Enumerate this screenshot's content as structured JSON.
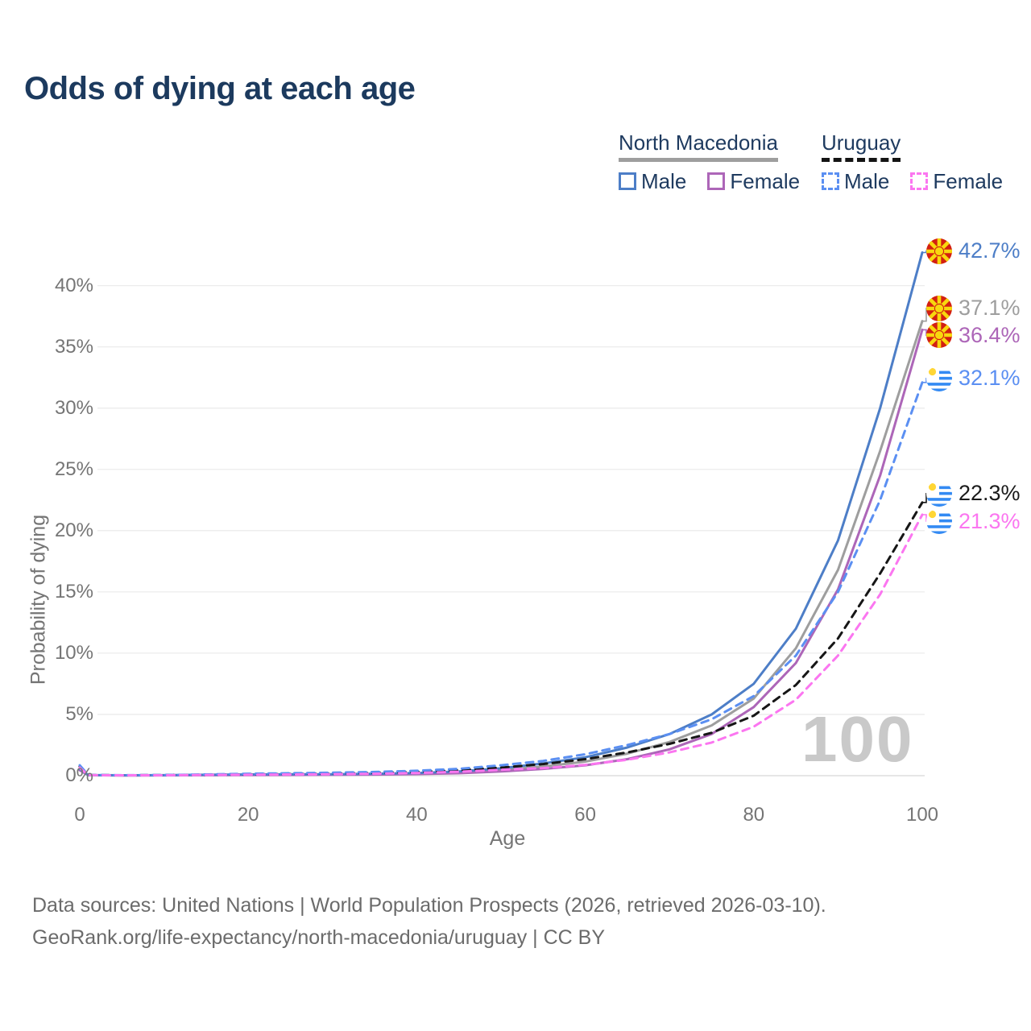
{
  "title": "Odds of dying at each age",
  "legend": {
    "groups": [
      {
        "label": "North Macedonia",
        "underline_style": "solid",
        "underline_color": "#9e9e9e",
        "items": [
          {
            "label": "Male",
            "swatch_color": "#4d7ec7",
            "swatch_style": "solid"
          },
          {
            "label": "Female",
            "swatch_color": "#ad66b8",
            "swatch_style": "solid"
          }
        ]
      },
      {
        "label": "Uruguay",
        "underline_style": "dashed",
        "underline_color": "#141414",
        "items": [
          {
            "label": "Male",
            "swatch_color": "#5b8ff2",
            "swatch_style": "dashed"
          },
          {
            "label": "Female",
            "swatch_color": "#fb76f0",
            "swatch_style": "dashed"
          }
        ]
      }
    ]
  },
  "chart_data": {
    "type": "line",
    "title": "Odds of dying at each age",
    "xlabel": "Age",
    "ylabel": "Probability of dying",
    "xlim": [
      0,
      100
    ],
    "ylim": [
      0,
      43
    ],
    "xticks": [
      0,
      20,
      40,
      60,
      80,
      100
    ],
    "yticks": [
      0,
      5,
      10,
      15,
      20,
      25,
      30,
      35,
      40
    ],
    "ytick_suffix": "%",
    "grid": "horizontal",
    "hover_age_indicator": "100",
    "ages": [
      0,
      1,
      5,
      10,
      15,
      20,
      25,
      30,
      35,
      40,
      45,
      50,
      55,
      60,
      65,
      70,
      75,
      80,
      85,
      90,
      95,
      100
    ],
    "series": [
      {
        "name": "North Macedonia",
        "sex": "both",
        "style": "solid",
        "color": "#9e9e9e",
        "flag": "mk",
        "end_label": "37.1%",
        "label_color": "#9e9e9e",
        "values": [
          0.5,
          0.04,
          0.025,
          0.03,
          0.05,
          0.07,
          0.08,
          0.09,
          0.12,
          0.17,
          0.27,
          0.46,
          0.75,
          1.15,
          1.8,
          2.75,
          4.1,
          6.3,
          10.4,
          16.8,
          26.5,
          37.1
        ]
      },
      {
        "name": "North Macedonia Female",
        "sex": "female",
        "style": "solid",
        "color": "#ad66b8",
        "flag": "mk",
        "end_label": "36.4%",
        "label_color": "#ad66b8",
        "values": [
          0.45,
          0.04,
          0.02,
          0.025,
          0.04,
          0.05,
          0.06,
          0.07,
          0.09,
          0.13,
          0.2,
          0.34,
          0.55,
          0.85,
          1.35,
          2.15,
          3.4,
          5.6,
          9.2,
          15.2,
          24.5,
          36.4
        ]
      },
      {
        "name": "North Macedonia Male",
        "sex": "male",
        "style": "solid",
        "color": "#4d7ec7",
        "flag": "mk",
        "end_label": "42.7%",
        "label_color": "#4d7ec7",
        "values": [
          0.55,
          0.05,
          0.03,
          0.04,
          0.07,
          0.1,
          0.11,
          0.12,
          0.16,
          0.22,
          0.35,
          0.6,
          1.0,
          1.5,
          2.3,
          3.4,
          5.0,
          7.5,
          12.0,
          19.2,
          30.0,
          42.7
        ]
      },
      {
        "name": "Uruguay",
        "sex": "both",
        "style": "dashed",
        "color": "#161616",
        "flag": "uy",
        "end_label": "22.3%",
        "label_color": "#1a1a1a",
        "values": [
          0.75,
          0.045,
          0.035,
          0.045,
          0.08,
          0.12,
          0.15,
          0.18,
          0.23,
          0.31,
          0.44,
          0.66,
          0.95,
          1.35,
          1.9,
          2.6,
          3.5,
          4.9,
          7.4,
          11.2,
          16.5,
          22.3
        ]
      },
      {
        "name": "Uruguay Male",
        "sex": "male",
        "style": "dashed",
        "color": "#5b8ff2",
        "flag": "uy",
        "end_label": "32.1%",
        "label_color": "#5b8ff2",
        "values": [
          0.85,
          0.05,
          0.04,
          0.05,
          0.1,
          0.16,
          0.2,
          0.24,
          0.3,
          0.4,
          0.56,
          0.85,
          1.2,
          1.75,
          2.5,
          3.4,
          4.6,
          6.5,
          9.8,
          15.0,
          22.5,
          32.1
        ]
      },
      {
        "name": "Uruguay Female",
        "sex": "female",
        "style": "dashed",
        "color": "#fb76f0",
        "flag": "uy",
        "end_label": "21.3%",
        "label_color": "#fb76f0",
        "values": [
          0.65,
          0.04,
          0.03,
          0.035,
          0.06,
          0.08,
          0.1,
          0.12,
          0.16,
          0.22,
          0.32,
          0.48,
          0.62,
          0.88,
          1.3,
          1.9,
          2.7,
          4.0,
          6.2,
          9.8,
          14.8,
          21.3
        ]
      }
    ]
  },
  "footer": {
    "line1": "Data sources: United Nations | World Population Prospects (2026, retrieved 2026-03-10).",
    "line2": "GeoRank.org/life-expectancy/north-macedonia/uruguay | CC BY"
  }
}
